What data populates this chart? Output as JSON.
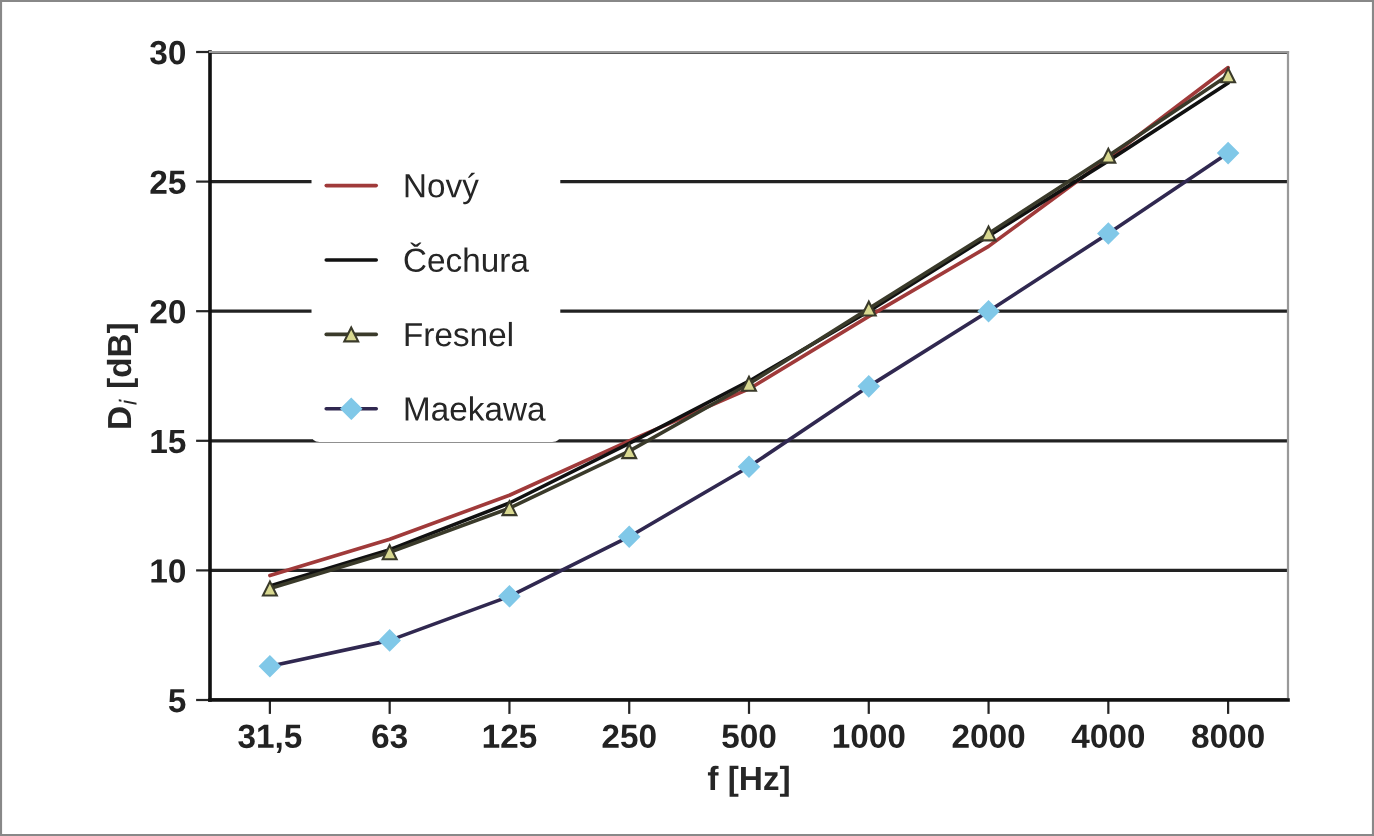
{
  "chart_data": {
    "type": "line",
    "xlabel": "f [Hz]",
    "ylabel": "D$_{i}$ [dB]",
    "categories": [
      "31,5",
      "63",
      "125",
      "250",
      "500",
      "1000",
      "2000",
      "4000",
      "8000"
    ],
    "series": [
      {
        "name": "Nový",
        "color": "#a03a3a",
        "marker": "none",
        "values": [
          9.8,
          11.2,
          12.9,
          15.0,
          17.0,
          19.8,
          22.5,
          25.9,
          29.4
        ]
      },
      {
        "name": "Čechura",
        "color": "#111111",
        "marker": "none",
        "values": [
          9.4,
          10.8,
          12.6,
          14.9,
          17.3,
          20.0,
          22.9,
          25.8,
          28.8
        ]
      },
      {
        "name": "Fresnel",
        "color": "#3a3a2a",
        "marker": "triangle",
        "values": [
          9.3,
          10.7,
          12.4,
          14.6,
          17.2,
          20.1,
          23.0,
          26.0,
          29.1
        ]
      },
      {
        "name": "Maekawa",
        "color": "#302850",
        "marker": "diamond",
        "values": [
          6.3,
          7.3,
          9.0,
          11.3,
          14.0,
          17.1,
          20.0,
          23.0,
          26.1
        ]
      }
    ],
    "ylim": [
      5,
      30
    ],
    "yticks": [
      5,
      10,
      15,
      20,
      25,
      30
    ],
    "grid": "y",
    "legend": "top left",
    "line_style": "solid"
  }
}
